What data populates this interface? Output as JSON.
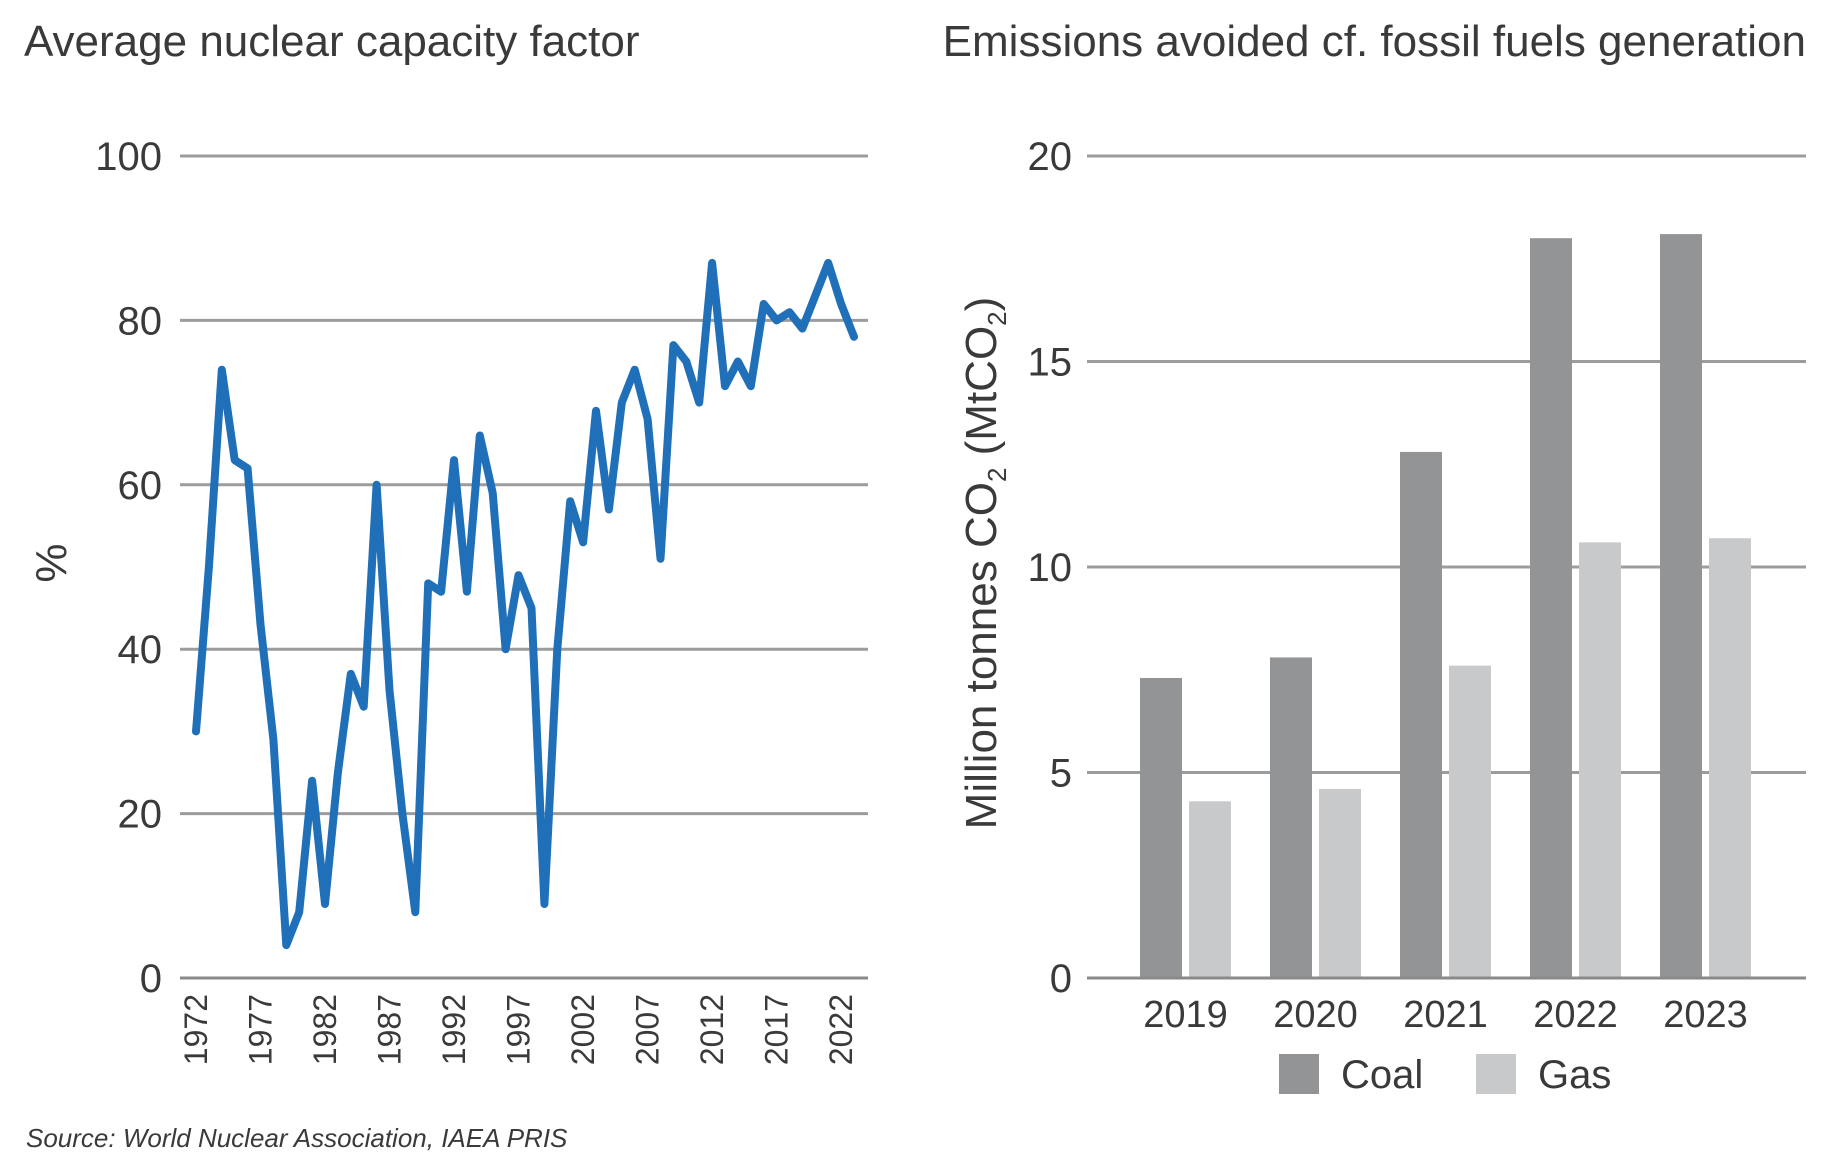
{
  "chart_data": [
    {
      "type": "line",
      "title": "Average nuclear capacity factor",
      "ylabel": "%",
      "xlabel": "",
      "ylim": [
        0,
        100
      ],
      "yticks": [
        "0",
        "20",
        "40",
        "60",
        "80",
        "100"
      ],
      "grid": true,
      "xtick_labels": [
        "1972",
        "1977",
        "1982",
        "1987",
        "1992",
        "1997",
        "2002",
        "2007",
        "2012",
        "2017",
        "2022"
      ],
      "color": "#1f70b8",
      "series": [
        {
          "x": [
            1972,
            1973,
            1974,
            1975,
            1976,
            1977,
            1978,
            1979,
            1980,
            1981,
            1982,
            1983,
            1984,
            1985,
            1986,
            1987,
            1988,
            1989,
            1990,
            1991,
            1992,
            1993,
            1994,
            1995,
            1996,
            1997,
            1998,
            1999,
            2000,
            2001,
            2002,
            2003,
            2004,
            2005,
            2006,
            2007,
            2008,
            2009,
            2010,
            2011,
            2012,
            2013,
            2014,
            2015,
            2016,
            2017,
            2018,
            2019,
            2020,
            2021,
            2022,
            2023
          ],
          "values": [
            30,
            50,
            74,
            63,
            62,
            43,
            29,
            4,
            8,
            24,
            9,
            25,
            37,
            33,
            60,
            35,
            20,
            8,
            48,
            47,
            63,
            47,
            66,
            59,
            40,
            49,
            45,
            9,
            40,
            58,
            53,
            69,
            57,
            70,
            74,
            68,
            51,
            77,
            75,
            70,
            87,
            72,
            75,
            72,
            82,
            80,
            81,
            79,
            83,
            87,
            82,
            78
          ]
        }
      ]
    },
    {
      "type": "bar",
      "title": "Emissions avoided cf. fossil fuels generation",
      "ylabel": "Million tonnes CO2 (MtCO2)",
      "ylabel_parts": [
        "Million tonnes CO",
        "2",
        " (MtCO",
        "2",
        ")"
      ],
      "xlabel": "",
      "ylim": [
        0,
        20
      ],
      "yticks": [
        "0",
        "5",
        "10",
        "15",
        "20"
      ],
      "grid": true,
      "legend_placement": "bottom",
      "categories": [
        "2019",
        "2020",
        "2021",
        "2022",
        "2023"
      ],
      "series": [
        {
          "name": "Coal",
          "color": "#939496",
          "values": [
            7.3,
            7.8,
            12.8,
            18.0,
            18.1
          ]
        },
        {
          "name": "Gas",
          "color": "#c8c9cb",
          "values": [
            4.3,
            4.6,
            7.6,
            10.6,
            10.7
          ]
        }
      ]
    }
  ],
  "source": "Source: World Nuclear Association, IAEA PRIS"
}
